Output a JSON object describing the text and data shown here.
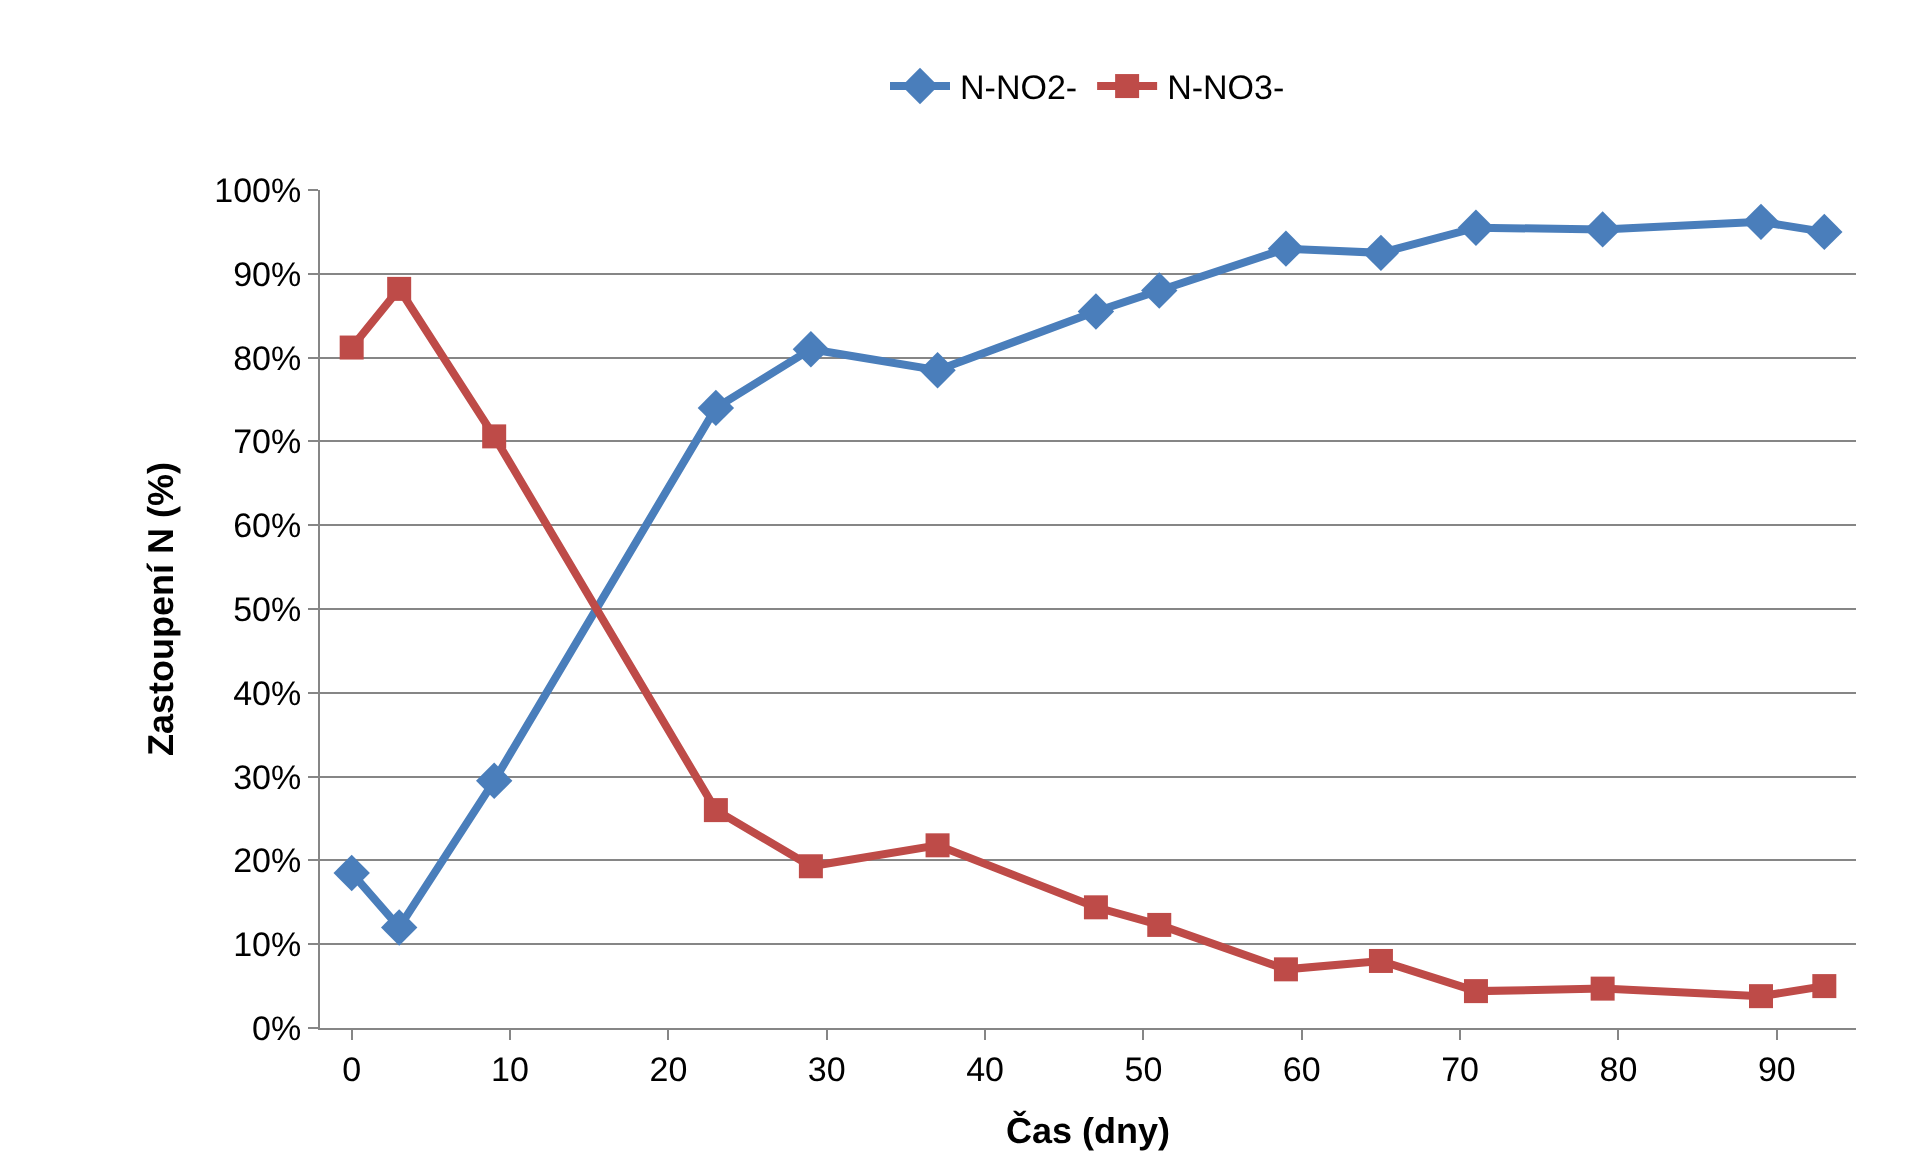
{
  "chart_data": {
    "type": "line",
    "xlabel": "Čas (dny)",
    "ylabel": "Zastoupení N (%)",
    "x": [
      0,
      3,
      9,
      23,
      29,
      37,
      47,
      51,
      59,
      65,
      71,
      79,
      89,
      93
    ],
    "series": [
      {
        "name": "N-NO2-",
        "color": "#4a7ebb",
        "marker": "diamond",
        "values": [
          18.5,
          12,
          29.5,
          74,
          81,
          78.5,
          85.5,
          88,
          93,
          92.5,
          95.5,
          95.3,
          96.2,
          95
        ]
      },
      {
        "name": "N-NO3-",
        "color": "#be4b48",
        "marker": "square",
        "values": [
          81.2,
          88.2,
          70.6,
          26,
          19.3,
          21.8,
          14.4,
          12.3,
          7,
          8,
          4.4,
          4.7,
          3.8,
          5
        ]
      }
    ],
    "xlim": [
      -2,
      95
    ],
    "xticks": [
      0,
      10,
      20,
      30,
      40,
      50,
      60,
      70,
      80,
      90
    ],
    "ylim": [
      0,
      100
    ],
    "yticks": [
      {
        "value": 0,
        "label": "0%"
      },
      {
        "value": 10,
        "label": "10%"
      },
      {
        "value": 20,
        "label": "20%"
      },
      {
        "value": 30,
        "label": "30%"
      },
      {
        "value": 40,
        "label": "40%"
      },
      {
        "value": 50,
        "label": "50%"
      },
      {
        "value": 60,
        "label": "60%"
      },
      {
        "value": 70,
        "label": "70%"
      },
      {
        "value": 80,
        "label": "80%"
      },
      {
        "value": 90,
        "label": "90%"
      },
      {
        "value": 100,
        "label": "100%"
      }
    ],
    "grid": "y",
    "legend": "top",
    "line_style": "solid"
  }
}
